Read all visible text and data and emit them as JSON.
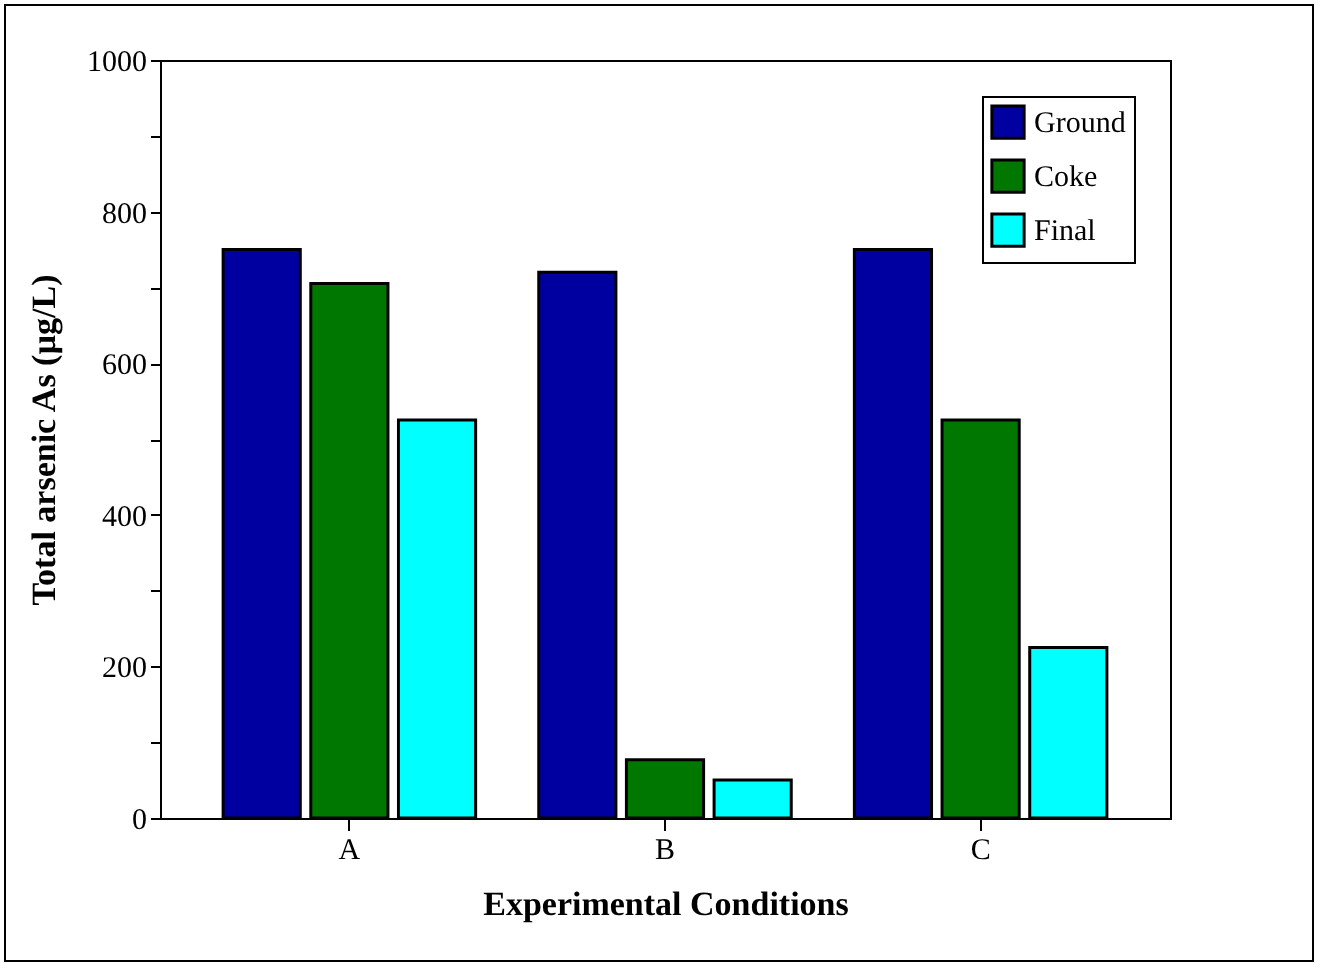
{
  "chart_data": {
    "type": "bar",
    "xlabel": "Experimental Conditions",
    "ylabel": "Total arsenic As (µg/L)",
    "categories": [
      "A",
      "B",
      "C"
    ],
    "series": [
      {
        "name": "Ground",
        "color": "#0000a0",
        "values": [
          750,
          720,
          750
        ]
      },
      {
        "name": "Coke",
        "color": "#007800",
        "values": [
          705,
          77,
          525
        ]
      },
      {
        "name": "Final",
        "color": "#00ffff",
        "values": [
          525,
          50,
          225
        ]
      }
    ],
    "ylim": [
      0,
      1000
    ],
    "yticks": [
      0,
      {
        "value": 100,
        "label": null
      },
      200,
      {
        "value": 300,
        "label": null
      },
      400,
      {
        "value": 500,
        "label": null
      },
      600,
      {
        "value": 700,
        "label": null
      },
      800,
      {
        "value": 900,
        "label": null
      },
      1000
    ],
    "grid": false,
    "legend": "top right"
  }
}
